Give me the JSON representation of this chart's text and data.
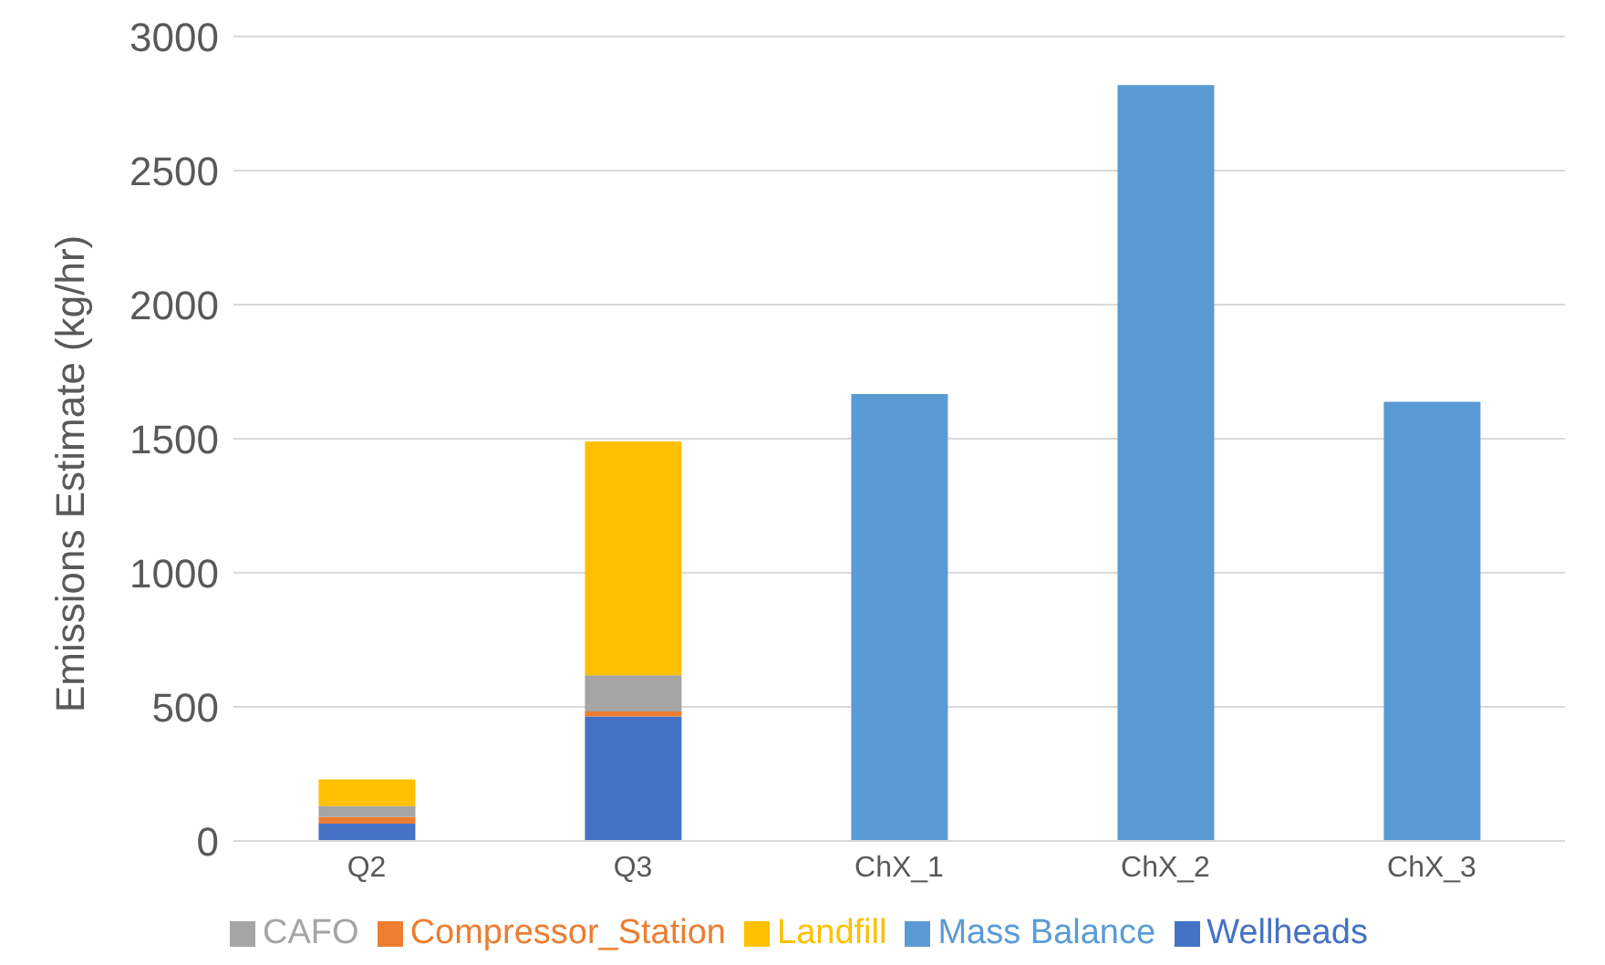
{
  "chart_data": {
    "type": "bar",
    "stacked": true,
    "ylabel": "Emissions Estimate (kg/hr)",
    "categories": [
      "Q2",
      "Q3",
      "ChX_1",
      "ChX_2",
      "ChX_3"
    ],
    "series": [
      {
        "name": "Wellheads",
        "color": "#4472c4",
        "values": [
          65,
          464,
          null,
          null,
          null
        ]
      },
      {
        "name": "Compressor_Station",
        "color": "#ed7d31",
        "values": [
          24,
          19,
          null,
          null,
          null
        ]
      },
      {
        "name": "CAFO",
        "color": "#a5a5a5",
        "values": [
          41,
          135,
          null,
          null,
          null
        ]
      },
      {
        "name": "Landfill",
        "color": "#ffc000",
        "values": [
          100,
          872,
          null,
          null,
          null
        ]
      },
      {
        "name": "Mass Balance",
        "color": "#5b9bd5",
        "values": [
          null,
          null,
          1667,
          2819,
          1638
        ]
      }
    ],
    "ylim": [
      0,
      3000
    ],
    "yticks": [
      0,
      500,
      1000,
      1500,
      2000,
      2500,
      3000
    ],
    "grid": "y",
    "legend": "bottom"
  }
}
